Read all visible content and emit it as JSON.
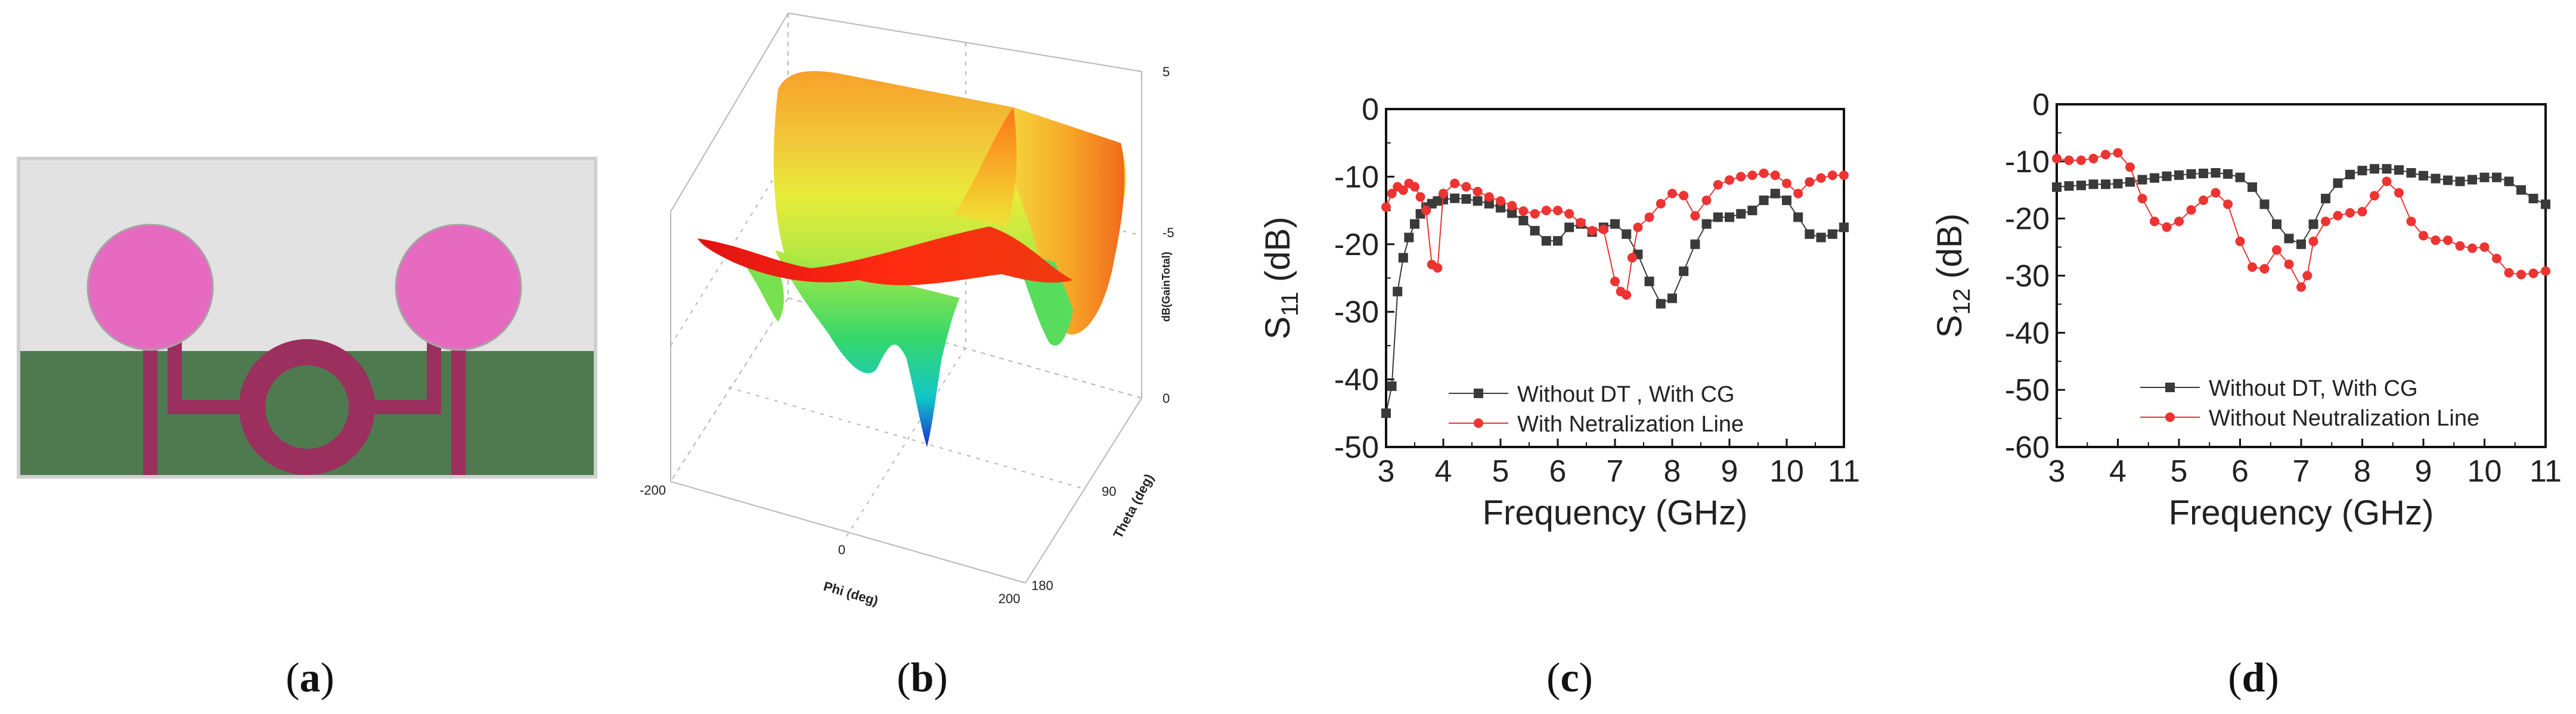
{
  "panel_a": {
    "caption_open": "(",
    "caption_letter": "a",
    "caption_close": ")",
    "colors": {
      "substrate": "#e1e1e1",
      "ground": "#4f7a4f",
      "patch": "#e66bc0",
      "feed": "#9b2f5e"
    }
  },
  "panel_b": {
    "caption_open": "(",
    "caption_letter": "b",
    "caption_close": ")",
    "z_ticks": [
      "5",
      "-5",
      "0"
    ],
    "z_label": "dB(GainTotal)",
    "x_label": "Phi (deg)",
    "x_ticks": [
      "-200",
      "0",
      "200"
    ],
    "y_label": "Theta (deg)",
    "y_ticks": [
      "90",
      "180"
    ]
  },
  "panel_c": {
    "caption_open": "(",
    "caption_letter": "c",
    "caption_close": ")"
  },
  "panel_d": {
    "caption_open": "(",
    "caption_letter": "d",
    "caption_close": ")"
  },
  "chart_data": [
    {
      "type": "line",
      "panel": "c",
      "xlabel": "Frequency (GHz)",
      "ylabel_main": "S",
      "ylabel_sub": "11",
      "ylabel_unit": " (dB)",
      "xlim": [
        3,
        11
      ],
      "ylim": [
        -50,
        0
      ],
      "x_ticks": [
        "3",
        "4",
        "5",
        "6",
        "7",
        "8",
        "9",
        "10",
        "11"
      ],
      "y_ticks": [
        "0",
        "-10",
        "-20",
        "-30",
        "-40",
        "-50"
      ],
      "legend_position": "bottom-center",
      "series": [
        {
          "name": "Without DT , With CG",
          "color": "#3a3a3a",
          "marker": "square",
          "x": [
            3.0,
            3.1,
            3.2,
            3.3,
            3.4,
            3.5,
            3.6,
            3.7,
            3.8,
            3.9,
            4.0,
            4.2,
            4.4,
            4.6,
            4.8,
            5.0,
            5.2,
            5.4,
            5.6,
            5.8,
            6.0,
            6.2,
            6.4,
            6.6,
            6.8,
            7.0,
            7.2,
            7.4,
            7.6,
            7.8,
            8.0,
            8.2,
            8.4,
            8.6,
            8.8,
            9.0,
            9.2,
            9.4,
            9.6,
            9.8,
            10.0,
            10.2,
            10.4,
            10.6,
            10.8,
            11.0
          ],
          "y": [
            -45,
            -41,
            -27,
            -22,
            -19,
            -17,
            -15.5,
            -14.5,
            -14,
            -13.6,
            -13.4,
            -13.2,
            -13.3,
            -13.6,
            -14,
            -14.6,
            -15.4,
            -16.5,
            -18,
            -19.5,
            -19.5,
            -17.5,
            -17,
            -18.2,
            -17.5,
            -17,
            -18.5,
            -21.5,
            -25.5,
            -28.8,
            -28,
            -24,
            -20,
            -17,
            -16,
            -16,
            -15.5,
            -15,
            -13.5,
            -12.5,
            -13.5,
            -16,
            -18.5,
            -19,
            -18.5,
            -17.5
          ]
        },
        {
          "name": "With Netralization Line",
          "color": "#ee3333",
          "marker": "circle",
          "x": [
            3.0,
            3.1,
            3.2,
            3.3,
            3.4,
            3.5,
            3.6,
            3.7,
            3.8,
            3.9,
            4.0,
            4.2,
            4.4,
            4.6,
            4.8,
            5.0,
            5.2,
            5.4,
            5.6,
            5.8,
            6.0,
            6.2,
            6.4,
            6.6,
            6.8,
            7.0,
            7.1,
            7.2,
            7.3,
            7.4,
            7.6,
            7.8,
            8.0,
            8.2,
            8.4,
            8.6,
            8.8,
            9.0,
            9.2,
            9.4,
            9.6,
            9.8,
            10.0,
            10.2,
            10.4,
            10.6,
            10.8,
            11.0
          ],
          "y": [
            -14.5,
            -12.5,
            -11.5,
            -12,
            -11,
            -11.5,
            -13,
            -15,
            -23,
            -23.5,
            -12.5,
            -11,
            -11.5,
            -12.2,
            -13,
            -13.6,
            -14.3,
            -15.1,
            -15.5,
            -15,
            -15,
            -15.5,
            -16.8,
            -18,
            -17.8,
            -25.5,
            -27,
            -27.5,
            -22,
            -17.5,
            -16,
            -14,
            -12.5,
            -12.8,
            -15.8,
            -13.5,
            -11.2,
            -10.5,
            -10,
            -9.8,
            -9.5,
            -9.8,
            -11,
            -12.5,
            -10.8,
            -10.2,
            -9.8,
            -9.8
          ]
        }
      ]
    },
    {
      "type": "line",
      "panel": "d",
      "xlabel": "Frequency (GHz)",
      "ylabel_main": "S",
      "ylabel_sub": "12",
      "ylabel_unit": " (dB)",
      "xlim": [
        3,
        11
      ],
      "ylim": [
        -60,
        0
      ],
      "x_ticks": [
        "3",
        "4",
        "5",
        "6",
        "7",
        "8",
        "9",
        "10",
        "11"
      ],
      "y_ticks": [
        "0",
        "-10",
        "-20",
        "-30",
        "-40",
        "-50",
        "-60"
      ],
      "legend_position": "bottom-center",
      "series": [
        {
          "name": "Without DT, With CG",
          "color": "#3a3a3a",
          "marker": "square",
          "x": [
            3.0,
            3.2,
            3.4,
            3.6,
            3.8,
            4.0,
            4.2,
            4.4,
            4.6,
            4.8,
            5.0,
            5.2,
            5.4,
            5.6,
            5.8,
            6.0,
            6.2,
            6.4,
            6.6,
            6.8,
            7.0,
            7.2,
            7.4,
            7.6,
            7.8,
            8.0,
            8.2,
            8.4,
            8.6,
            8.8,
            9.0,
            9.2,
            9.4,
            9.6,
            9.8,
            10.0,
            10.2,
            10.4,
            10.6,
            10.8,
            11.0
          ],
          "y": [
            -14.5,
            -14.3,
            -14.2,
            -14,
            -14,
            -13.9,
            -13.6,
            -13.2,
            -12.9,
            -12.6,
            -12.4,
            -12.2,
            -12.1,
            -12,
            -12.2,
            -12.8,
            -14.5,
            -17.5,
            -21,
            -23.5,
            -24.5,
            -21,
            -16.5,
            -13.8,
            -12.3,
            -11.6,
            -11.3,
            -11.3,
            -11.5,
            -12,
            -12.5,
            -13,
            -13.3,
            -13.5,
            -13.2,
            -12.8,
            -12.8,
            -13.5,
            -15,
            -16.5,
            -17.5
          ]
        },
        {
          "name": "Without Neutralization Line",
          "color": "#ee3333",
          "marker": "circle",
          "x": [
            3.0,
            3.2,
            3.4,
            3.6,
            3.8,
            4.0,
            4.2,
            4.4,
            4.6,
            4.8,
            5.0,
            5.2,
            5.4,
            5.6,
            5.8,
            6.0,
            6.2,
            6.4,
            6.6,
            6.8,
            7.0,
            7.1,
            7.2,
            7.4,
            7.6,
            7.8,
            8.0,
            8.2,
            8.4,
            8.6,
            8.8,
            9.0,
            9.2,
            9.4,
            9.6,
            9.8,
            10.0,
            10.2,
            10.4,
            10.6,
            10.8,
            11.0
          ],
          "y": [
            -9.5,
            -9.8,
            -9.8,
            -9.5,
            -8.8,
            -8.5,
            -11,
            -16.5,
            -20.5,
            -21.5,
            -20.5,
            -18.5,
            -16.8,
            -15.5,
            -17.5,
            -24,
            -28.5,
            -28.8,
            -25.5,
            -28,
            -32,
            -30,
            -24,
            -20.5,
            -19.5,
            -19,
            -18.8,
            -16,
            -13.5,
            -15.5,
            -20.5,
            -23,
            -23.8,
            -23.8,
            -24.8,
            -25.2,
            -25,
            -27,
            -29.5,
            -29.8,
            -29.6,
            -29.2
          ]
        }
      ]
    }
  ]
}
